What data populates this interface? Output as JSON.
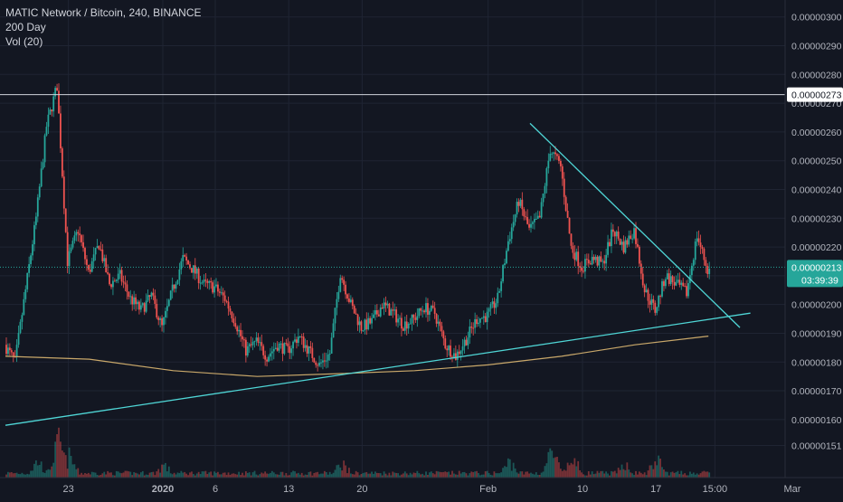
{
  "legend": {
    "symbol_line": "MATIC Network / Bitcoin, 240, BINANCE",
    "ma_label": "200 Day",
    "vol_label": "Vol (20)"
  },
  "price_axis": {
    "ticks": [
      "0.00000300",
      "0.00000290",
      "0.00000280",
      "0.00000270",
      "0.00000260",
      "0.00000250",
      "0.00000240",
      "0.00000230",
      "0.00000220",
      "0.00000210",
      "0.00000200",
      "0.00000190",
      "0.00000180",
      "0.00000170",
      "0.00000160",
      "0.00000151"
    ],
    "marked_price_label": "0.00000273",
    "current_price_label": "0.00000213",
    "countdown_label": "03:39:39"
  },
  "time_axis": {
    "ticks": [
      "23",
      "2020",
      "6",
      "13",
      "20",
      "Feb",
      "10",
      "17",
      "15:00",
      "Mar"
    ]
  },
  "colors": {
    "background": "#131722",
    "grid": "#1f2433",
    "up": "#26a69a",
    "down": "#ef5350",
    "ma": "#c9a86a",
    "trendline": "#4fd6d6",
    "text": "#b2b5be"
  },
  "chart_data": {
    "type": "candlestick",
    "symbol": "MATIC Network / Bitcoin",
    "interval": "240",
    "exchange": "BINANCE",
    "y_range": [
      1.48e-06,
      3.04e-06
    ],
    "price_lines": {
      "marked": 2.73e-06,
      "current": 2.13e-06
    },
    "indicators": [
      "200 Day",
      "Vol (20)"
    ],
    "price_path": [
      [
        "2019-12-17",
        1.86e-06
      ],
      [
        "2019-12-18",
        1.8e-06
      ],
      [
        "2019-12-19",
        2.05e-06
      ],
      [
        "2019-12-20",
        2.3e-06
      ],
      [
        "2019-12-21",
        2.62e-06
      ],
      [
        "2019-12-22",
        2.76e-06
      ],
      [
        "2019-12-23",
        2.15e-06
      ],
      [
        "2019-12-24",
        2.26e-06
      ],
      [
        "2019-12-25",
        2.11e-06
      ],
      [
        "2019-12-26",
        2.21e-06
      ],
      [
        "2019-12-27",
        2.07e-06
      ],
      [
        "2019-12-28",
        2.1e-06
      ],
      [
        "2019-12-29",
        2.02e-06
      ],
      [
        "2019-12-30",
        1.98e-06
      ],
      [
        "2019-12-31",
        2.03e-06
      ],
      [
        "2020-01-01",
        1.92e-06
      ],
      [
        "2020-01-02",
        2.05e-06
      ],
      [
        "2020-01-03",
        2.16e-06
      ],
      [
        "2020-01-04",
        2.12e-06
      ],
      [
        "2020-01-05",
        2.07e-06
      ],
      [
        "2020-01-06",
        2.06e-06
      ],
      [
        "2020-01-07",
        2.02e-06
      ],
      [
        "2020-01-08",
        1.94e-06
      ],
      [
        "2020-01-09",
        1.84e-06
      ],
      [
        "2020-01-10",
        1.87e-06
      ],
      [
        "2020-01-11",
        1.82e-06
      ],
      [
        "2020-01-12",
        1.86e-06
      ],
      [
        "2020-01-13",
        1.84e-06
      ],
      [
        "2020-01-14",
        1.89e-06
      ],
      [
        "2020-01-15",
        1.84e-06
      ],
      [
        "2020-01-16",
        1.79e-06
      ],
      [
        "2020-01-17",
        1.83e-06
      ],
      [
        "2020-01-18",
        2.11e-06
      ],
      [
        "2020-01-19",
        2e-06
      ],
      [
        "2020-01-20",
        1.92e-06
      ],
      [
        "2020-01-21",
        1.94e-06
      ],
      [
        "2020-01-22",
        2e-06
      ],
      [
        "2020-01-23",
        1.97e-06
      ],
      [
        "2020-01-24",
        1.93e-06
      ],
      [
        "2020-01-25",
        1.95e-06
      ],
      [
        "2020-01-26",
        1.99e-06
      ],
      [
        "2020-01-27",
        1.97e-06
      ],
      [
        "2020-01-28",
        1.86e-06
      ],
      [
        "2020-01-29",
        1.82e-06
      ],
      [
        "2020-01-30",
        1.88e-06
      ],
      [
        "2020-01-31",
        1.95e-06
      ],
      [
        "2020-02-01",
        1.96e-06
      ],
      [
        "2020-02-02",
        2.02e-06
      ],
      [
        "2020-02-03",
        2.22e-06
      ],
      [
        "2020-02-04",
        2.36e-06
      ],
      [
        "2020-02-05",
        2.26e-06
      ],
      [
        "2020-02-06",
        2.3e-06
      ],
      [
        "2020-02-07",
        2.54e-06
      ],
      [
        "2020-02-08",
        2.48e-06
      ],
      [
        "2020-02-09",
        2.2e-06
      ],
      [
        "2020-02-10",
        2.13e-06
      ],
      [
        "2020-02-11",
        2.16e-06
      ],
      [
        "2020-02-12",
        2.14e-06
      ],
      [
        "2020-02-13",
        2.26e-06
      ],
      [
        "2020-02-14",
        2.2e-06
      ],
      [
        "2020-02-15",
        2.26e-06
      ],
      [
        "2020-02-16",
        2.05e-06
      ],
      [
        "2020-02-17",
        1.98e-06
      ],
      [
        "2020-02-18",
        2.1e-06
      ],
      [
        "2020-02-19",
        2.07e-06
      ],
      [
        "2020-02-20",
        2.04e-06
      ],
      [
        "2020-02-21",
        2.24e-06
      ],
      [
        "2020-02-22",
        2.12e-06
      ]
    ],
    "ma_200_path": [
      [
        "2019-12-17",
        1.82e-06
      ],
      [
        "2019-12-25",
        1.81e-06
      ],
      [
        "2020-01-02",
        1.77e-06
      ],
      [
        "2020-01-10",
        1.75e-06
      ],
      [
        "2020-01-18",
        1.76e-06
      ],
      [
        "2020-01-25",
        1.77e-06
      ],
      [
        "2020-02-01",
        1.79e-06
      ],
      [
        "2020-02-08",
        1.82e-06
      ],
      [
        "2020-02-15",
        1.86e-06
      ],
      [
        "2020-02-22",
        1.89e-06
      ]
    ],
    "support_trendline": [
      [
        "2019-12-17",
        1.58e-06
      ],
      [
        "2020-02-26",
        1.97e-06
      ]
    ],
    "resistance_trendline": [
      [
        "2020-02-05",
        2.63e-06
      ],
      [
        "2020-02-25",
        1.92e-06
      ]
    ],
    "volume_pattern": [
      [
        "2019-12-20",
        0.45
      ],
      [
        "2019-12-22",
        0.95
      ],
      [
        "2019-12-23",
        0.55
      ],
      [
        "2020-01-01",
        0.35
      ],
      [
        "2020-01-18",
        0.4
      ],
      [
        "2020-02-03",
        0.45
      ],
      [
        "2020-02-07",
        0.7
      ],
      [
        "2020-02-09",
        0.5
      ],
      [
        "2020-02-14",
        0.4
      ],
      [
        "2020-02-17",
        0.5
      ]
    ]
  }
}
